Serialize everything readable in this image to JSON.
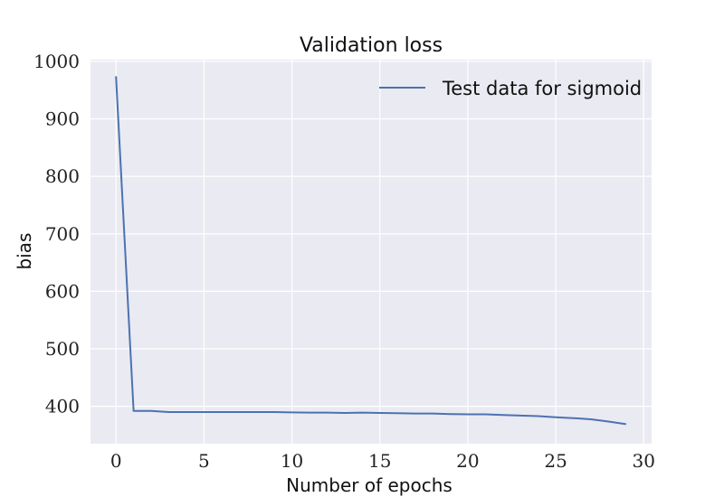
{
  "chart_data": {
    "type": "line",
    "title": "Validation loss",
    "xlabel": "Number of epochs",
    "ylabel": "bias",
    "xlim": [
      -1.45,
      30.45
    ],
    "ylim": [
      335,
      1003
    ],
    "x_ticks": [
      0,
      5,
      10,
      15,
      20,
      25,
      30
    ],
    "y_ticks": [
      400,
      500,
      600,
      700,
      800,
      900,
      1000
    ],
    "grid": true,
    "legend_position": "top-right",
    "series": [
      {
        "name": "Test data for sigmoid",
        "color": "#4c72b0",
        "x": [
          0,
          1,
          2,
          3,
          4,
          5,
          6,
          7,
          8,
          9,
          10,
          11,
          12,
          13,
          14,
          15,
          16,
          17,
          18,
          19,
          20,
          21,
          22,
          23,
          24,
          25,
          26,
          27,
          28,
          29
        ],
        "values": [
          974,
          392,
          392,
          390,
          390,
          390,
          390,
          390,
          390,
          390,
          389.5,
          389,
          389,
          388.5,
          389,
          388.5,
          388,
          387.5,
          387.5,
          386.5,
          386,
          386,
          385,
          384,
          383,
          381,
          379.5,
          377.5,
          373.5,
          369
        ]
      }
    ]
  },
  "style": {
    "plot_background": "#eaeaf2",
    "grid_color": "#ffffff"
  }
}
